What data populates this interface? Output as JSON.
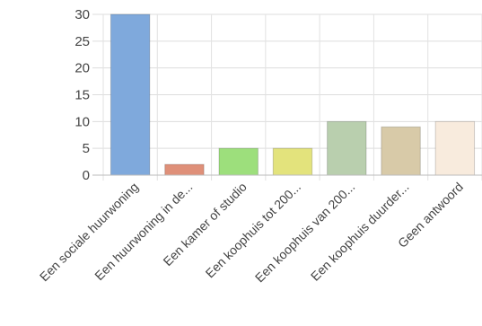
{
  "chart_data": {
    "type": "bar",
    "categories": [
      "Een sociale huurwoning",
      "Een huurwoning in de...",
      "Een kamer of studio",
      "Een koophuis tot 200...",
      "Een koophuis van 200...",
      "Een koophuis duurder...",
      "Geen antwoord"
    ],
    "values": [
      30,
      2,
      5,
      5,
      10,
      9,
      10
    ],
    "colors": [
      "#7fa9dc",
      "#df9079",
      "#9ddf7c",
      "#e3e37c",
      "#b9cfae",
      "#d8caa8",
      "#f8ebdd"
    ],
    "ylim": [
      0,
      30
    ],
    "yticks": [
      "0",
      "5",
      "10",
      "15",
      "20",
      "25",
      "30"
    ],
    "grid": true,
    "title": "",
    "xlabel": "",
    "ylabel": ""
  }
}
